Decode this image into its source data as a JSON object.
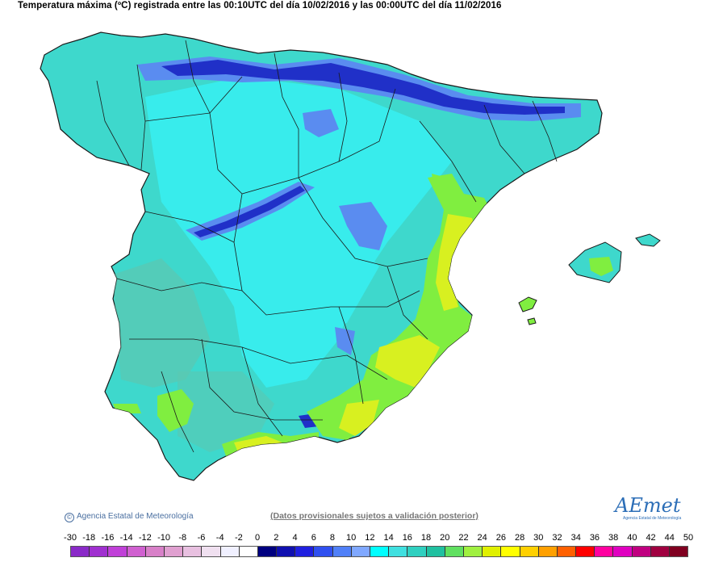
{
  "title": "Temperatura máxima (ºC) registrada entre las 00:10UTC del día 10/02/2016 y las 00:00UTC del día 11/02/2016",
  "credit": "Agencia Estatal de Meteorología",
  "credit_symbol": "©",
  "disclaimer": "(Datos provisionales sujetos a validación posterior)",
  "logo": {
    "text": "AEmet",
    "subtitle": "Agencia Estatal de Meteorología"
  },
  "legend": {
    "labels": [
      "-30",
      "-18",
      "-16",
      "-14",
      "-12",
      "-10",
      "-8",
      "-6",
      "-4",
      "-2",
      "0",
      "2",
      "4",
      "6",
      "8",
      "10",
      "12",
      "14",
      "16",
      "18",
      "20",
      "22",
      "24",
      "26",
      "28",
      "30",
      "32",
      "34",
      "36",
      "38",
      "40",
      "42",
      "44",
      "50"
    ],
    "colors": [
      "#8a2ac8",
      "#a030d0",
      "#c040d8",
      "#d060d0",
      "#d880c8",
      "#e0a0d0",
      "#e8c0e0",
      "#f0e0f0",
      "#f0f0ff",
      "#ffffff",
      "#000080",
      "#1010b0",
      "#2020e0",
      "#3050f0",
      "#5080f8",
      "#80a8ff",
      "#00ffff",
      "#40e0e0",
      "#30d0c0",
      "#20c0a0",
      "#60e060",
      "#a0f040",
      "#e0f000",
      "#ffff00",
      "#ffd000",
      "#ffa000",
      "#ff6000",
      "#ff0000",
      "#ff00a0",
      "#e000c0",
      "#c00080",
      "#a00040",
      "#800020"
    ]
  },
  "colors": {
    "base_land": "#3ed8cc",
    "cool_land": "#38ecec",
    "cold": "#5a8cf0",
    "very_cold": "#2030c8",
    "mild": "#66c8a8",
    "warm_green": "#80ee40",
    "warm_yellow": "#d8f020",
    "border": "#1a1a1a"
  }
}
